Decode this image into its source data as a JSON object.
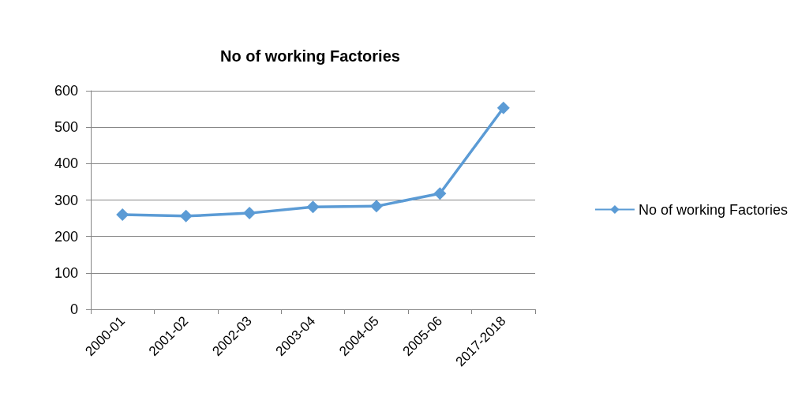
{
  "chart_data": {
    "type": "line",
    "title": "No of working Factories",
    "categories": [
      "2000-01",
      "2001-02",
      "2002-03",
      "2003-04",
      "2004-05",
      "2005-06",
      "2017-2018"
    ],
    "series": [
      {
        "name": "No of working Factories",
        "color": "#5b9bd5",
        "values": [
          260,
          256,
          264,
          281,
          283,
          318,
          553
        ]
      }
    ],
    "ylim": [
      0,
      600
    ],
    "yticks": [
      0,
      100,
      200,
      300,
      400,
      500,
      600
    ],
    "grid": "y",
    "legend": "right",
    "marker": "diamond",
    "line_style": "solid"
  }
}
